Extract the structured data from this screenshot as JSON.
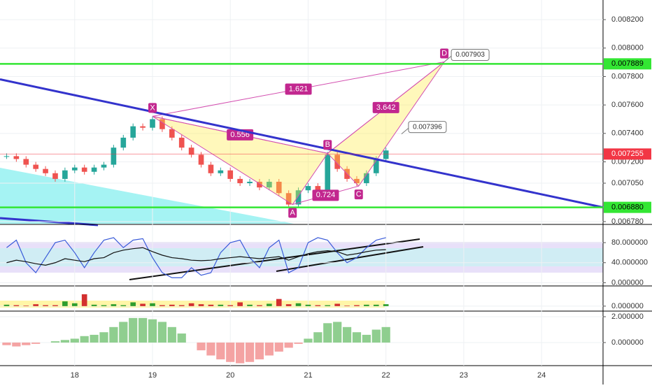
{
  "chart_data": [
    {
      "type": "candlestick",
      "x": [
        17.125,
        17.25,
        17.375,
        17.5,
        17.625,
        17.75,
        17.875,
        18.0,
        18.125,
        18.25,
        18.375,
        18.5,
        18.625,
        18.75,
        18.875,
        19.0,
        19.125,
        19.25,
        19.375,
        19.5,
        19.625,
        19.75,
        19.875,
        20.0,
        20.125,
        20.25,
        20.375,
        20.5,
        20.625,
        20.75,
        20.875,
        21.0,
        21.125,
        21.25,
        21.375,
        21.5,
        21.625,
        21.75,
        21.875,
        22.0
      ],
      "values": [
        0.00724,
        0.00722,
        0.00718,
        0.00715,
        0.00712,
        0.00708,
        0.00714,
        0.00716,
        0.00713,
        0.00716,
        0.00718,
        0.0073,
        0.00737,
        0.00745,
        0.00744,
        0.0075,
        0.00743,
        0.00737,
        0.0073,
        0.00725,
        0.00718,
        0.00712,
        0.00714,
        0.00708,
        0.00705,
        0.00706,
        0.00702,
        0.00706,
        0.00698,
        0.0069,
        0.007,
        0.00703,
        0.007,
        0.00725,
        0.00715,
        0.00708,
        0.00705,
        0.00712,
        0.00722,
        0.00728
      ],
      "up_color": "#26a69a",
      "down_color": "#ef5350",
      "xlim": [
        17.04,
        24.79
      ],
      "xticks": [
        18,
        19,
        20,
        21,
        22,
        23,
        24
      ],
      "ylim": [
        0.006765,
        0.008338
      ],
      "yticks": [
        {
          "value": 0.0082,
          "label": "0.008200"
        },
        {
          "value": 0.008,
          "label": "0.008000"
        },
        {
          "value": 0.0078,
          "label": "0.007800"
        },
        {
          "value": 0.0076,
          "label": "0.007600"
        },
        {
          "value": 0.0074,
          "label": "0.007400"
        },
        {
          "value": 0.0072,
          "label": "0.007200"
        },
        {
          "value": 0.00705,
          "label": "0.007050"
        },
        {
          "value": 0.00678,
          "label": "0.006780"
        }
      ],
      "levels": [
        {
          "value": 0.007889,
          "label": "0.007889",
          "color": "#33e633"
        },
        {
          "value": 0.007255,
          "label": "0.007255",
          "color": "#f23645"
        },
        {
          "value": 0.00688,
          "label": "0.006880",
          "color": "#33e633"
        }
      ],
      "trendline": {
        "x": [
          17.04,
          24.79
        ],
        "values": [
          0.00778,
          0.00688
        ],
        "color": "#3333cc"
      },
      "pattern": [
        {
          "label": "X",
          "x": 19.0,
          "value": 0.00752
        },
        {
          "label": "A",
          "x": 20.8,
          "value": 0.0069
        },
        {
          "label": "B",
          "x": 21.25,
          "value": 0.00726
        },
        {
          "label": "C",
          "x": 21.65,
          "value": 0.00703
        },
        {
          "label": "D",
          "x": 22.75,
          "value": 0.007903
        }
      ],
      "ratios": [
        0.556,
        0.724,
        3.642,
        1.621
      ],
      "callouts": [
        {
          "x": 22.75,
          "value": 0.007903,
          "label": "0.007903"
        },
        {
          "x": 22.2,
          "value": 0.007396,
          "label": "0.007396"
        }
      ]
    },
    {
      "type": "line",
      "x": [
        17.125,
        17.25,
        17.375,
        17.5,
        17.625,
        17.75,
        17.875,
        18.0,
        18.125,
        18.25,
        18.375,
        18.5,
        18.625,
        18.75,
        18.875,
        19.0,
        19.125,
        19.25,
        19.375,
        19.5,
        19.625,
        19.75,
        19.875,
        20.0,
        20.125,
        20.25,
        20.375,
        20.5,
        20.625,
        20.75,
        20.875,
        21.0,
        21.125,
        21.25,
        21.375,
        21.5,
        21.625,
        21.75,
        21.875,
        22.0
      ],
      "series": [
        {
          "color": "#3a5bd9",
          "values": [
            70,
            85,
            40,
            20,
            50,
            80,
            85,
            60,
            30,
            60,
            85,
            90,
            70,
            85,
            88,
            50,
            20,
            10,
            10,
            30,
            15,
            20,
            60,
            80,
            85,
            50,
            30,
            70,
            85,
            20,
            30,
            80,
            90,
            85,
            60,
            40,
            50,
            70,
            85,
            90
          ]
        },
        {
          "color": "#111111",
          "values": [
            40,
            45,
            42,
            38,
            35,
            40,
            48,
            45,
            42,
            48,
            50,
            60,
            65,
            68,
            70,
            62,
            55,
            50,
            48,
            45,
            44,
            45,
            48,
            50,
            52,
            50,
            48,
            50,
            52,
            45,
            52,
            58,
            62,
            64,
            62,
            55,
            58,
            62,
            65,
            66
          ]
        }
      ],
      "ylim": [
        -5,
        115
      ],
      "yticks": [
        {
          "value": 80,
          "label": "80.000000"
        },
        {
          "value": 40,
          "label": "40.000000"
        },
        {
          "value": 0,
          "label": "0.000000"
        }
      ]
    },
    {
      "type": "bar",
      "x": [
        17.125,
        17.25,
        17.375,
        17.5,
        17.625,
        17.75,
        17.875,
        18.0,
        18.125,
        18.25,
        18.375,
        18.5,
        18.625,
        18.75,
        18.875,
        19.0,
        19.125,
        19.25,
        19.375,
        19.5,
        19.625,
        19.75,
        19.875,
        20.0,
        20.125,
        20.25,
        20.375,
        20.5,
        20.625,
        20.75,
        20.875,
        21.0,
        21.125,
        21.25,
        21.375,
        21.5,
        21.625,
        21.75,
        21.875,
        22.0
      ],
      "values": [
        3,
        2,
        1,
        4,
        2,
        2,
        10,
        6,
        25,
        3,
        2,
        4,
        2,
        8,
        5,
        6,
        2,
        3,
        2,
        6,
        4,
        3,
        3,
        2,
        8,
        3,
        2,
        5,
        15,
        4,
        6,
        3,
        2,
        2,
        5,
        1,
        2,
        3,
        3,
        4
      ],
      "color": "#2e9e2e",
      "ylim": [
        -9,
        41
      ],
      "yticks": [
        {
          "value": 0,
          "label": "0.000000"
        }
      ]
    },
    {
      "type": "histogram-bar",
      "x": [
        17.125,
        17.25,
        17.375,
        17.5,
        17.625,
        17.75,
        17.875,
        18.0,
        18.125,
        18.25,
        18.375,
        18.5,
        18.625,
        18.75,
        18.875,
        19.0,
        19.125,
        19.25,
        19.375,
        19.5,
        19.625,
        19.75,
        19.875,
        20.0,
        20.125,
        20.25,
        20.375,
        20.5,
        20.625,
        20.75,
        20.875,
        21.0,
        21.125,
        21.25,
        21.375,
        21.5,
        21.625,
        21.75,
        21.875,
        22.0
      ],
      "values": [
        -0.2,
        -0.3,
        -0.2,
        -0.1,
        0.0,
        0.1,
        0.2,
        0.3,
        0.5,
        0.6,
        0.8,
        1.2,
        1.6,
        1.9,
        1.9,
        1.8,
        1.6,
        1.2,
        0.7,
        0.0,
        -0.6,
        -1.0,
        -1.3,
        -1.5,
        -1.6,
        -1.5,
        -1.3,
        -1.0,
        -0.7,
        -0.4,
        -0.1,
        0.3,
        0.8,
        1.5,
        1.6,
        1.2,
        0.8,
        0.6,
        1.0,
        1.2
      ],
      "up_color": "#8fce8f",
      "down_color": "#f4a3a3",
      "ylim": [
        -1.73,
        2.38
      ],
      "yticks": [
        {
          "value": 2,
          "label": "2.000000"
        },
        {
          "value": 0,
          "label": "0.000000"
        }
      ]
    }
  ]
}
